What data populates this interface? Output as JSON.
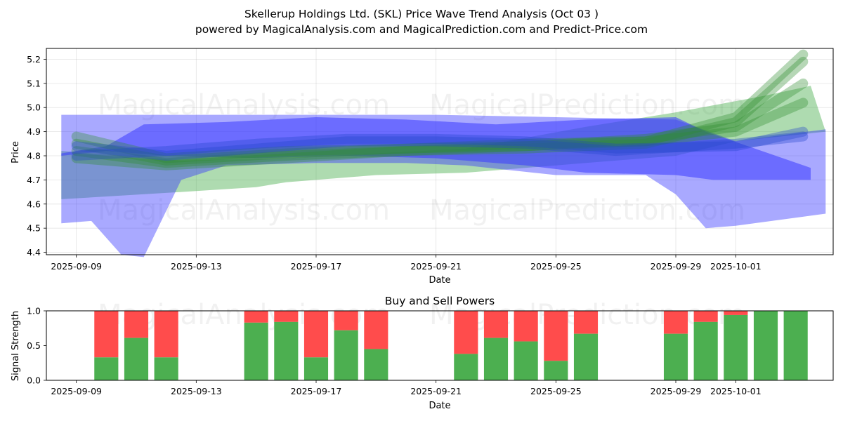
{
  "chart_data": [
    {
      "type": "area",
      "title": "Skellerup Holdings Ltd. (SKL) Price Wave Trend Analysis (Oct 03 )",
      "subtitle": "powered by MagicalAnalysis.com and MagicalPrediction.com and Predict-Price.com",
      "xlabel": "Date",
      "ylabel": "Price",
      "xlim": [
        "2025-09-08 00:00",
        "2025-10-04 06:00"
      ],
      "ylim": [
        4.39,
        5.245
      ],
      "x_ticks": [
        "2025-09-09",
        "2025-09-13",
        "2025-09-17",
        "2025-09-21",
        "2025-09-25",
        "2025-09-29",
        "2025-10-01"
      ],
      "y_ticks": [
        4.4,
        4.5,
        4.6,
        4.7,
        4.8,
        4.9,
        5.0,
        5.1,
        5.2
      ],
      "grid": true,
      "bands": [
        {
          "name": "green-wide-band",
          "color": "#4caf50",
          "opacity": 0.45,
          "upper": [
            [
              "2025-09-08 12:00",
              4.82
            ],
            [
              "2025-09-12 12:00",
              4.78
            ],
            [
              "2025-09-16",
              4.79
            ],
            [
              "2025-09-22",
              4.83
            ],
            [
              "2025-09-26",
              4.92
            ],
            [
              "2025-09-29",
              4.98
            ],
            [
              "2025-10-02",
              5.05
            ],
            [
              "2025-10-03 12:00",
              5.09
            ],
            [
              "2025-10-04",
              4.9
            ]
          ],
          "lower": [
            [
              "2025-09-08 12:00",
              4.62
            ],
            [
              "2025-09-12 12:00",
              4.65
            ],
            [
              "2025-09-15",
              4.67
            ],
            [
              "2025-09-16",
              4.69
            ],
            [
              "2025-09-19",
              4.72
            ],
            [
              "2025-09-22",
              4.73
            ],
            [
              "2025-09-26",
              4.77
            ],
            [
              "2025-09-29",
              4.8
            ],
            [
              "2025-10-01",
              4.86
            ],
            [
              "2025-10-04",
              4.9
            ]
          ]
        },
        {
          "name": "blue-wide-band",
          "color": "#3333ff",
          "opacity": 0.42,
          "upper": [
            [
              "2025-09-08 12:00",
              4.97
            ],
            [
              "2025-09-12",
              4.97
            ],
            [
              "2025-09-17",
              4.97
            ],
            [
              "2025-09-21",
              4.97
            ],
            [
              "2025-09-25",
              4.96
            ],
            [
              "2025-09-29",
              4.95
            ],
            [
              "2025-10-01",
              4.86
            ],
            [
              "2025-10-04",
              4.91
            ]
          ],
          "lower": [
            [
              "2025-09-08 12:00",
              4.52
            ],
            [
              "2025-09-09 12:00",
              4.53
            ],
            [
              "2025-09-10 12:00",
              4.39
            ],
            [
              "2025-09-11 06:00",
              4.38
            ],
            [
              "2025-09-12 12:00",
              4.7
            ],
            [
              "2025-09-14",
              4.76
            ],
            [
              "2025-09-17",
              4.77
            ],
            [
              "2025-09-20",
              4.77
            ],
            [
              "2025-09-22",
              4.76
            ],
            [
              "2025-09-25",
              4.72
            ],
            [
              "2025-09-28",
              4.72
            ],
            [
              "2025-09-29",
              4.64
            ],
            [
              "2025-09-30",
              4.5
            ],
            [
              "2025-10-01",
              4.51
            ],
            [
              "2025-10-04",
              4.56
            ]
          ]
        },
        {
          "name": "blue-mid-band",
          "color": "#3a3aff",
          "opacity": 0.55,
          "upper": [
            [
              "2025-09-08 12:00",
              4.81
            ],
            [
              "2025-09-10",
              4.84
            ],
            [
              "2025-09-11 06:00",
              4.93
            ],
            [
              "2025-09-14",
              4.94
            ],
            [
              "2025-09-17",
              4.96
            ],
            [
              "2025-09-20",
              4.95
            ],
            [
              "2025-09-23",
              4.93
            ],
            [
              "2025-09-26",
              4.95
            ],
            [
              "2025-09-29",
              4.96
            ],
            [
              "2025-09-30",
              4.9
            ],
            [
              "2025-10-03 12:00",
              4.75
            ]
          ],
          "lower": [
            [
              "2025-09-08 12:00",
              4.8
            ],
            [
              "2025-09-10",
              4.82
            ],
            [
              "2025-09-12",
              4.8
            ],
            [
              "2025-09-15",
              4.79
            ],
            [
              "2025-09-18",
              4.8
            ],
            [
              "2025-09-21",
              4.79
            ],
            [
              "2025-09-24",
              4.76
            ],
            [
              "2025-09-26",
              4.73
            ],
            [
              "2025-09-29",
              4.72
            ],
            [
              "2025-09-30 06:00",
              4.7
            ],
            [
              "2025-10-03 12:00",
              4.7
            ]
          ]
        }
      ],
      "series": [
        {
          "name": "green-trend-1",
          "color": "#2e8b2e",
          "values": [
            [
              "2025-09-09",
              4.82
            ],
            [
              "2025-09-12",
              4.77
            ],
            [
              "2025-09-16",
              4.8
            ],
            [
              "2025-09-20",
              4.82
            ],
            [
              "2025-09-24",
              4.84
            ],
            [
              "2025-09-28",
              4.86
            ],
            [
              "2025-10-01",
              4.9
            ],
            [
              "2025-10-03 06:00",
              5.02
            ]
          ]
        },
        {
          "name": "green-trend-2",
          "color": "#2e8b2e",
          "values": [
            [
              "2025-09-09",
              4.85
            ],
            [
              "2025-09-12",
              4.78
            ],
            [
              "2025-09-16",
              4.81
            ],
            [
              "2025-09-20",
              4.83
            ],
            [
              "2025-09-24",
              4.84
            ],
            [
              "2025-09-28",
              4.87
            ],
            [
              "2025-10-01",
              4.92
            ],
            [
              "2025-10-03 06:00",
              5.1
            ]
          ]
        },
        {
          "name": "green-trend-3",
          "color": "#2e8b2e",
          "values": [
            [
              "2025-09-09",
              4.79
            ],
            [
              "2025-09-12",
              4.76
            ],
            [
              "2025-09-16",
              4.79
            ],
            [
              "2025-09-20",
              4.82
            ],
            [
              "2025-09-24",
              4.83
            ],
            [
              "2025-09-28",
              4.85
            ],
            [
              "2025-10-01",
              4.94
            ],
            [
              "2025-10-03 06:00",
              5.19
            ]
          ]
        },
        {
          "name": "green-trend-4",
          "color": "#2e8b2e",
          "values": [
            [
              "2025-09-09",
              4.88
            ],
            [
              "2025-09-12",
              4.79
            ],
            [
              "2025-09-16",
              4.82
            ],
            [
              "2025-09-20",
              4.83
            ],
            [
              "2025-09-24",
              4.85
            ],
            [
              "2025-09-28",
              4.86
            ],
            [
              "2025-10-01",
              4.96
            ],
            [
              "2025-10-03 06:00",
              5.22
            ]
          ]
        },
        {
          "name": "blue-trend-1",
          "color": "#2244cc",
          "values": [
            [
              "2025-09-09",
              4.8
            ],
            [
              "2025-09-12",
              4.82
            ],
            [
              "2025-09-15",
              4.85
            ],
            [
              "2025-09-18",
              4.87
            ],
            [
              "2025-09-21",
              4.87
            ],
            [
              "2025-09-24",
              4.86
            ],
            [
              "2025-09-27",
              4.83
            ],
            [
              "2025-10-01",
              4.84
            ],
            [
              "2025-10-03 06:00",
              4.9
            ]
          ]
        },
        {
          "name": "blue-trend-2",
          "color": "#2244cc",
          "values": [
            [
              "2025-09-09",
              4.84
            ],
            [
              "2025-09-12",
              4.8
            ],
            [
              "2025-09-15",
              4.83
            ],
            [
              "2025-09-18",
              4.86
            ],
            [
              "2025-09-21",
              4.86
            ],
            [
              "2025-09-24",
              4.85
            ],
            [
              "2025-09-27",
              4.82
            ],
            [
              "2025-10-01",
              4.85
            ],
            [
              "2025-10-03 06:00",
              4.88
            ]
          ]
        }
      ],
      "watermarks": [
        "MagicalAnalysis.com",
        "MagicalPrediction.com",
        "MagicalAnalysis.com",
        "MagicalPrediction.com"
      ]
    },
    {
      "type": "bar",
      "title": "Buy and Sell Powers",
      "xlabel": "Date",
      "ylabel": "Signal Strength",
      "xlim": [
        "2025-09-08 00:00",
        "2025-10-04 06:00"
      ],
      "ylim": [
        0,
        1.0
      ],
      "x_ticks": [
        "2025-09-09",
        "2025-09-13",
        "2025-09-17",
        "2025-09-21",
        "2025-09-25",
        "2025-09-29",
        "2025-10-01"
      ],
      "y_ticks": [
        "0.0",
        "0.5",
        "1.0"
      ],
      "series": [
        {
          "name": "Buy",
          "color": "#4caf50"
        },
        {
          "name": "Sell",
          "color": "#ff4c4c"
        }
      ],
      "bars": [
        {
          "date": "2025-09-10",
          "buy": 0.33
        },
        {
          "date": "2025-09-11",
          "buy": 0.61
        },
        {
          "date": "2025-09-12",
          "buy": 0.33
        },
        {
          "date": "2025-09-15",
          "buy": 0.83
        },
        {
          "date": "2025-09-16",
          "buy": 0.84
        },
        {
          "date": "2025-09-17",
          "buy": 0.33
        },
        {
          "date": "2025-09-18",
          "buy": 0.72
        },
        {
          "date": "2025-09-19",
          "buy": 0.45
        },
        {
          "date": "2025-09-22",
          "buy": 0.38
        },
        {
          "date": "2025-09-23",
          "buy": 0.61
        },
        {
          "date": "2025-09-24",
          "buy": 0.56
        },
        {
          "date": "2025-09-25",
          "buy": 0.28
        },
        {
          "date": "2025-09-26",
          "buy": 0.67
        },
        {
          "date": "2025-09-29",
          "buy": 0.67
        },
        {
          "date": "2025-09-30",
          "buy": 0.84
        },
        {
          "date": "2025-10-01",
          "buy": 0.94
        },
        {
          "date": "2025-10-02",
          "buy": 1.0
        },
        {
          "date": "2025-10-03",
          "buy": 1.0
        }
      ],
      "watermarks": [
        "MagicalAnalysis.com",
        "MagicalPrediction.com"
      ]
    }
  ]
}
